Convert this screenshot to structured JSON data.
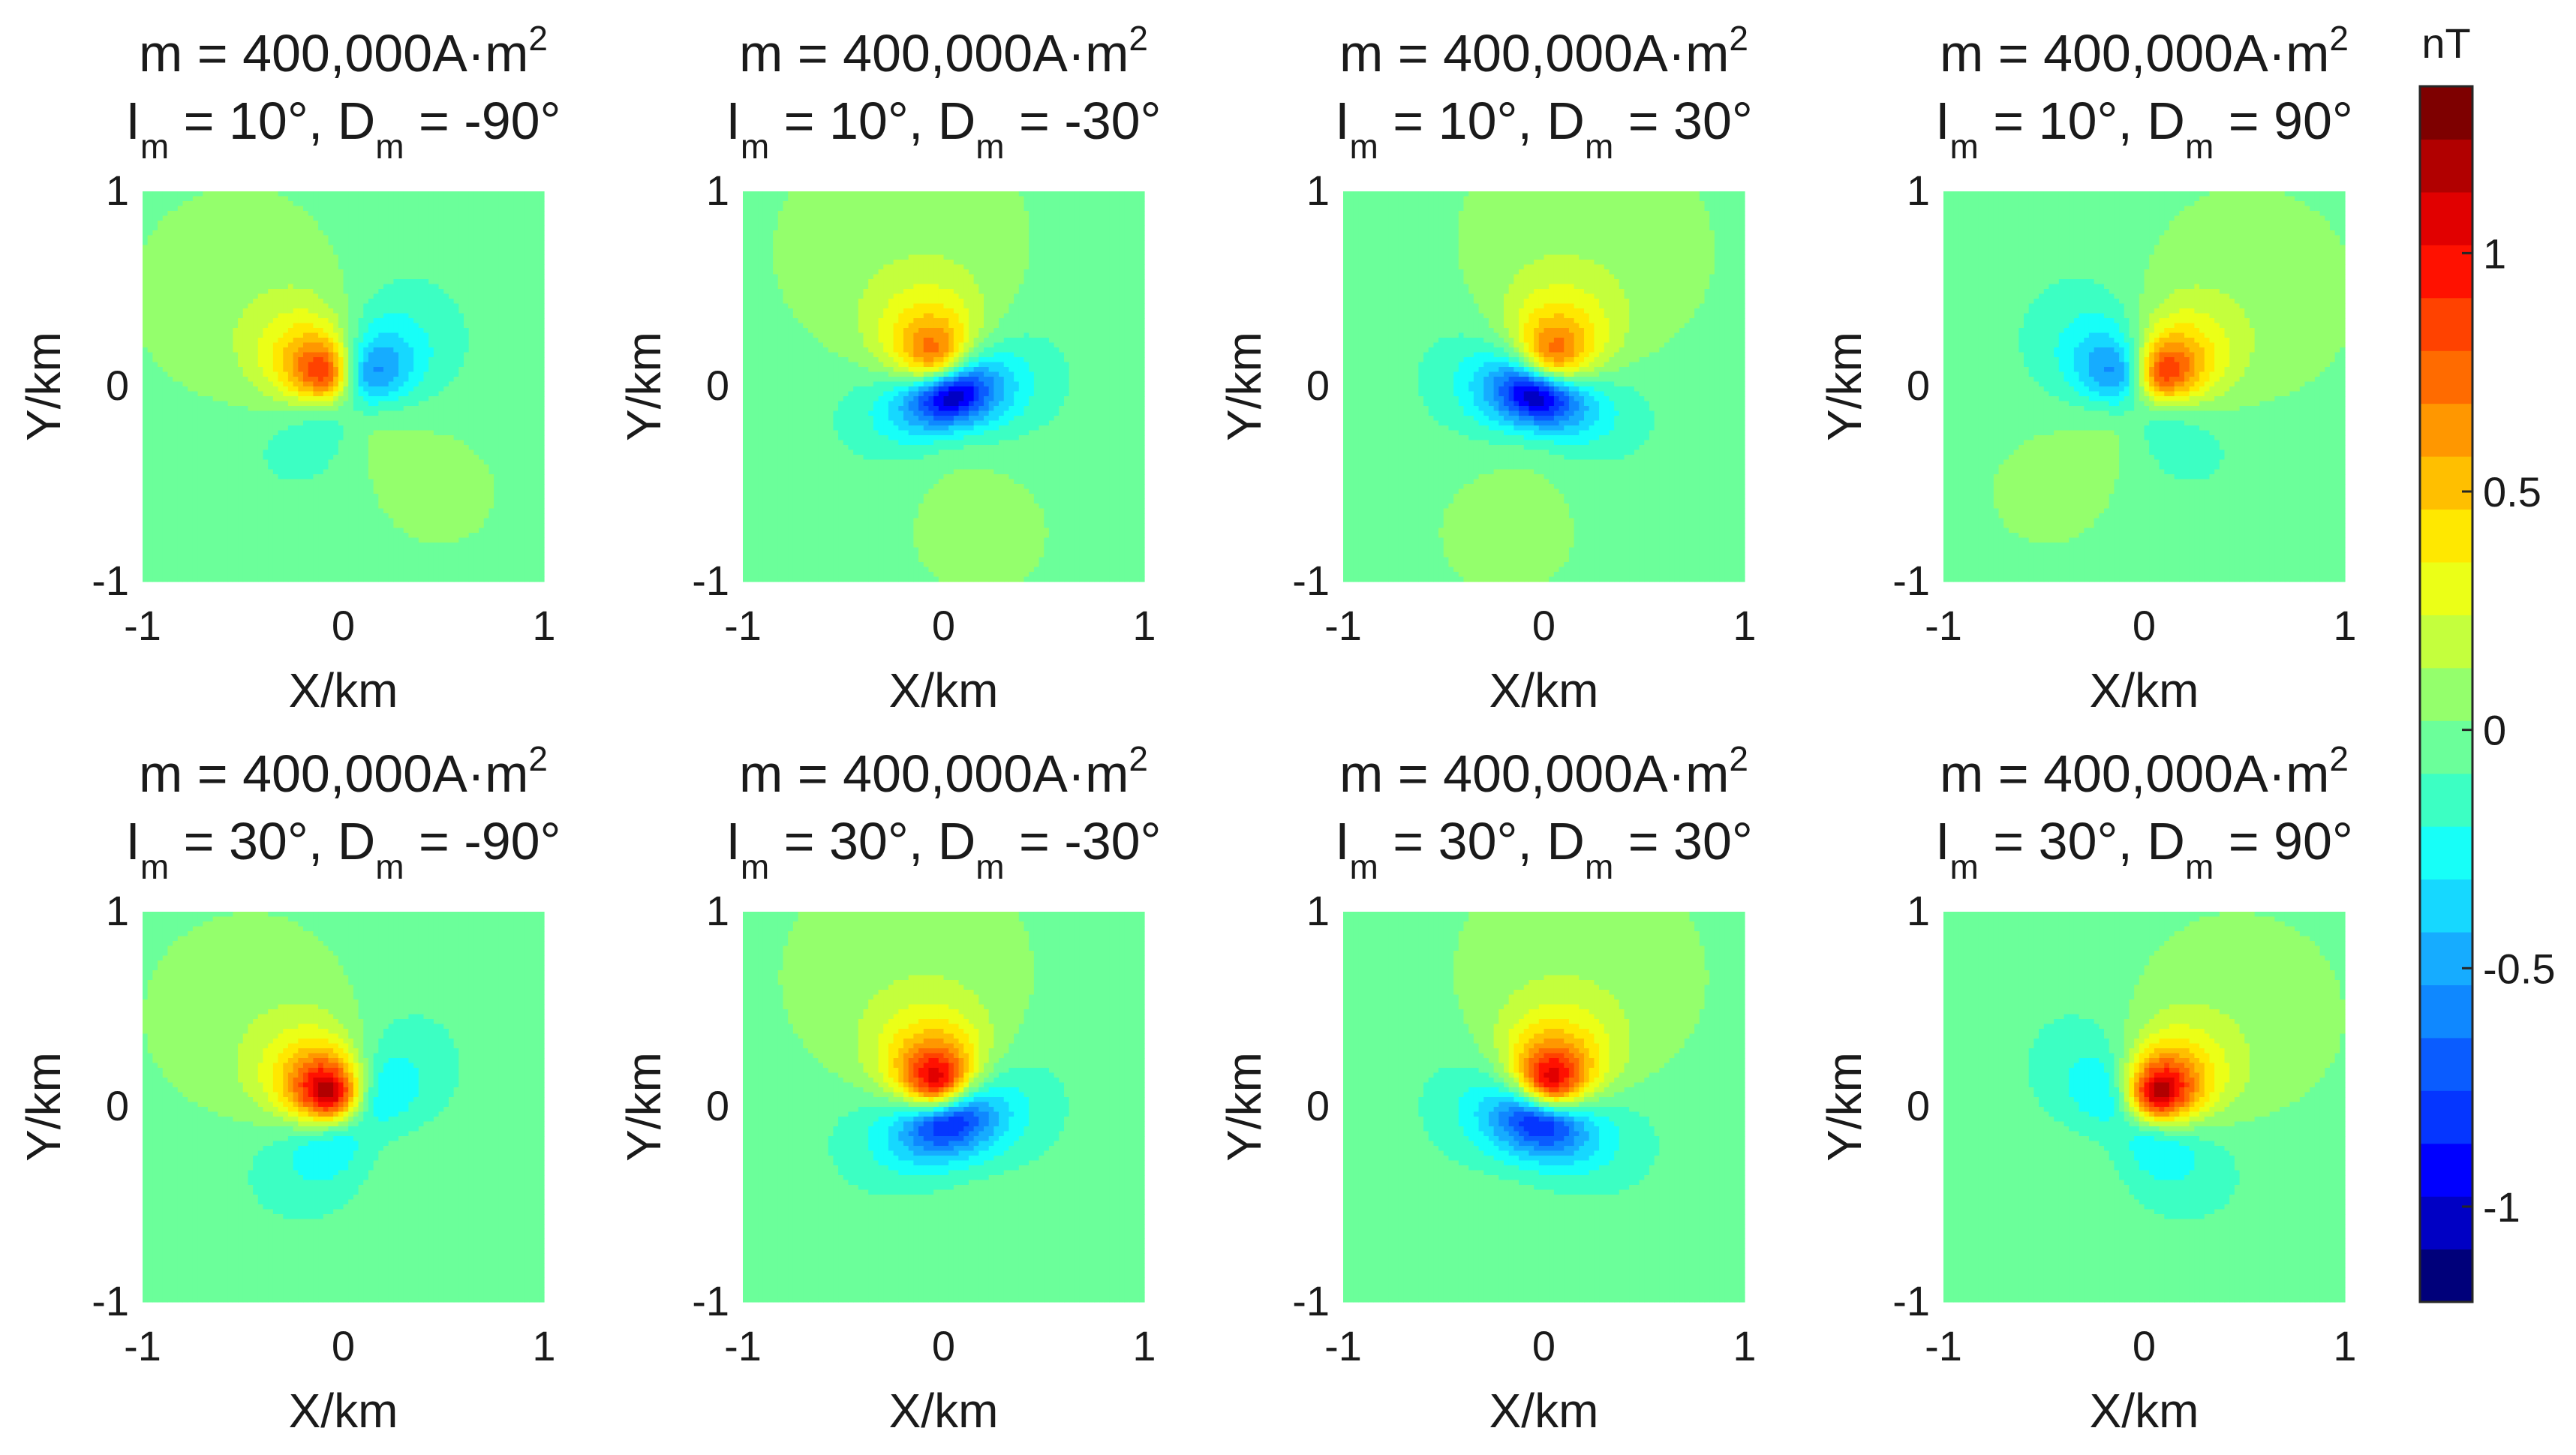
{
  "chart_data": {
    "type": "heatmap",
    "description_free": true,
    "colorbar": {
      "unit_label": "nT",
      "range": [
        -1.2,
        1.35
      ],
      "ticks": [
        {
          "value": -1,
          "label": "-1"
        },
        {
          "value": -0.5,
          "label": "-0.5"
        },
        {
          "value": 0,
          "label": "0"
        },
        {
          "value": 0.5,
          "label": "0.5"
        },
        {
          "value": 1,
          "label": "1"
        }
      ],
      "colors": [
        "#00007a",
        "#0000c4",
        "#0000ff",
        "#0536ff",
        "#0a5cff",
        "#0f88ff",
        "#16acff",
        "#16d8ff",
        "#17fff8",
        "#3cffc3",
        "#6bff9a",
        "#94ff6c",
        "#c4ff3d",
        "#ebff17",
        "#ffe800",
        "#ffbf00",
        "#ff9700",
        "#ff6b00",
        "#ff4200",
        "#ff1100",
        "#e10000",
        "#b10000",
        "#7e0000"
      ]
    },
    "panel_defaults": {
      "xlabel": "X/km",
      "ylabel": "Y/km",
      "xlim": [
        -1,
        1
      ],
      "ylim": [
        -1,
        1
      ],
      "x_ticks": [
        "-1",
        "0",
        "1"
      ],
      "y_ticks": [
        "1",
        "0",
        "-1"
      ]
    },
    "panels": [
      {
        "title": "m = 400,000A·m",
        "sup": "2",
        "i_label": "I",
        "i_sub": "m",
        "i_text": " = 10°, D",
        "d_sub": "m",
        "d_text": " = -90°",
        "inclination": 10,
        "declination": -90
      },
      {
        "title": "m = 400,000A·m",
        "sup": "2",
        "i_label": "I",
        "i_sub": "m",
        "i_text": " = 10°, D",
        "d_sub": "m",
        "d_text": " = -30°",
        "inclination": 10,
        "declination": -30
      },
      {
        "title": "m = 400,000A·m",
        "sup": "2",
        "i_label": "I",
        "i_sub": "m",
        "i_text": " = 10°, D",
        "d_sub": "m",
        "d_text": " = 30°",
        "inclination": 10,
        "declination": 30
      },
      {
        "title": "m = 400,000A·m",
        "sup": "2",
        "i_label": "I",
        "i_sub": "m",
        "i_text": " = 10°, D",
        "d_sub": "m",
        "d_text": " = 90°",
        "inclination": 10,
        "declination": 90
      },
      {
        "title": "m = 400,000A·m",
        "sup": "2",
        "i_label": "I",
        "i_sub": "m",
        "i_text": " = 30°, D",
        "d_sub": "m",
        "d_text": " = -90°",
        "inclination": 30,
        "declination": -90
      },
      {
        "title": "m = 400,000A·m",
        "sup": "2",
        "i_label": "I",
        "i_sub": "m",
        "i_text": " = 30°, D",
        "d_sub": "m",
        "d_text": " = -30°",
        "inclination": 30,
        "declination": -30
      },
      {
        "title": "m = 400,000A·m",
        "sup": "2",
        "i_label": "I",
        "i_sub": "m",
        "i_text": " = 30°, D",
        "d_sub": "m",
        "d_text": " = 30°",
        "inclination": 30,
        "declination": 30
      },
      {
        "title": "m = 400,000A·m",
        "sup": "2",
        "i_label": "I",
        "i_sub": "m",
        "i_text": " = 30°, D",
        "d_sub": "m",
        "d_text": " = 90°",
        "inclination": 30,
        "declination": 90
      }
    ]
  }
}
